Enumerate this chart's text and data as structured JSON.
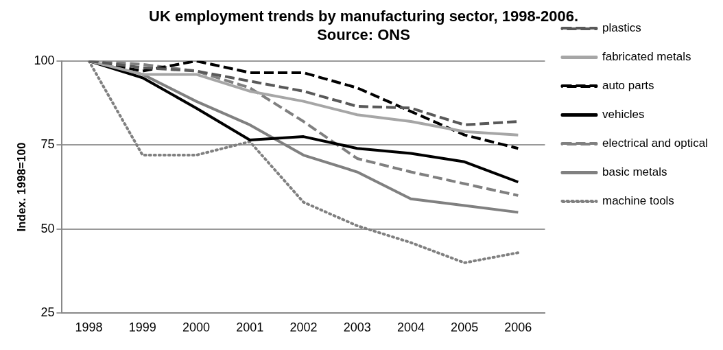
{
  "chart_data": {
    "type": "line",
    "title": [
      "UK employment trends by manufacturing sector, 1998-2006.",
      "Source: ONS"
    ],
    "ylabel": "Index. 1998=100",
    "categories": [
      "1998",
      "1999",
      "2000",
      "2001",
      "2002",
      "2003",
      "2004",
      "2005",
      "2006"
    ],
    "ylim": [
      25,
      100
    ],
    "yticks": [
      25,
      50,
      75,
      100
    ],
    "grid": "y",
    "legend": "right",
    "marker": "none",
    "series": [
      {
        "name": "plastics",
        "color": "#595959",
        "line_style": "dashed",
        "values": [
          100,
          98,
          97,
          94,
          91,
          86.5,
          86,
          81,
          82
        ]
      },
      {
        "name": "fabricated metals",
        "color": "#a6a6a6",
        "line_style": "solid",
        "values": [
          100,
          96,
          96,
          91,
          88,
          84,
          82,
          79,
          78
        ]
      },
      {
        "name": "auto parts",
        "color": "#000000",
        "line_style": "dashed",
        "values": [
          100,
          97,
          100,
          96.5,
          96.5,
          92,
          85,
          78,
          74
        ]
      },
      {
        "name": "vehicles",
        "color": "#000000",
        "line_style": "solid",
        "values": [
          100,
          95,
          86,
          76.5,
          77.5,
          74,
          72.5,
          70,
          64
        ]
      },
      {
        "name": "electrical and optical",
        "color": "#808080",
        "line_style": "dashed",
        "values": [
          100,
          99,
          97,
          92,
          82,
          71,
          67,
          63.5,
          60
        ]
      },
      {
        "name": "basic metals",
        "color": "#808080",
        "line_style": "solid",
        "values": [
          100,
          96,
          88,
          81,
          72,
          67,
          59,
          57,
          55
        ]
      },
      {
        "name": "machine tools",
        "color": "#808080",
        "line_style": "dotted",
        "values": [
          100,
          72,
          72,
          76,
          58,
          51,
          46,
          40,
          43
        ]
      }
    ]
  }
}
